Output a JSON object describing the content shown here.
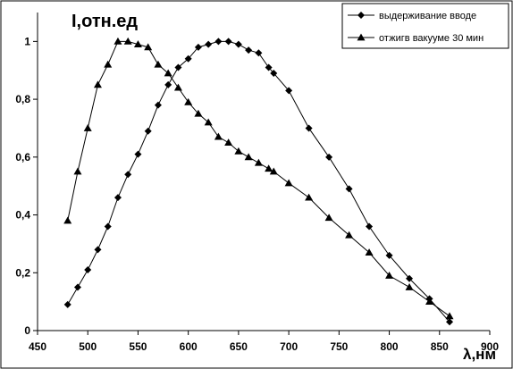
{
  "chart_data": {
    "type": "line",
    "ylabel": "I,отн.ед",
    "xlabel": "λ,нм",
    "xlim": [
      450,
      900
    ],
    "ylim": [
      0,
      1.1
    ],
    "x_ticks": [
      450,
      500,
      550,
      600,
      650,
      700,
      750,
      800,
      850,
      900
    ],
    "x_tick_labels": [
      "450",
      "500",
      "550",
      "600",
      "650",
      "700",
      "750",
      "800",
      "850",
      "900"
    ],
    "y_ticks": [
      0,
      0.2,
      0.4,
      0.6,
      0.8,
      1
    ],
    "y_tick_labels": [
      "0",
      "0,2",
      "0,4",
      "0,6",
      "0,8",
      "1"
    ],
    "grid": false,
    "legend_position": "top-right",
    "series": [
      {
        "name": "выдерживание вводе",
        "marker": "diamond",
        "color": "#000000",
        "x": [
          480,
          490,
          500,
          510,
          520,
          530,
          540,
          550,
          560,
          570,
          580,
          590,
          600,
          610,
          620,
          630,
          640,
          650,
          660,
          670,
          680,
          685,
          700,
          720,
          740,
          760,
          780,
          800,
          820,
          840,
          860
        ],
        "y": [
          0.09,
          0.15,
          0.21,
          0.28,
          0.36,
          0.46,
          0.54,
          0.61,
          0.69,
          0.78,
          0.85,
          0.91,
          0.94,
          0.98,
          0.99,
          1.0,
          1.0,
          0.99,
          0.97,
          0.96,
          0.91,
          0.89,
          0.83,
          0.7,
          0.6,
          0.49,
          0.36,
          0.26,
          0.18,
          0.11,
          0.03
        ]
      },
      {
        "name": "отжигв вакууме 30 мин",
        "marker": "triangle",
        "color": "#000000",
        "x": [
          480,
          490,
          500,
          510,
          520,
          530,
          540,
          550,
          560,
          570,
          580,
          590,
          600,
          610,
          620,
          630,
          640,
          650,
          660,
          670,
          680,
          685,
          700,
          720,
          740,
          760,
          780,
          800,
          820,
          840,
          860
        ],
        "y": [
          0.38,
          0.55,
          0.7,
          0.85,
          0.92,
          1.0,
          1.0,
          0.99,
          0.98,
          0.92,
          0.89,
          0.84,
          0.79,
          0.75,
          0.72,
          0.67,
          0.65,
          0.62,
          0.6,
          0.58,
          0.56,
          0.55,
          0.51,
          0.46,
          0.39,
          0.33,
          0.27,
          0.19,
          0.15,
          0.1,
          0.05
        ]
      }
    ]
  }
}
